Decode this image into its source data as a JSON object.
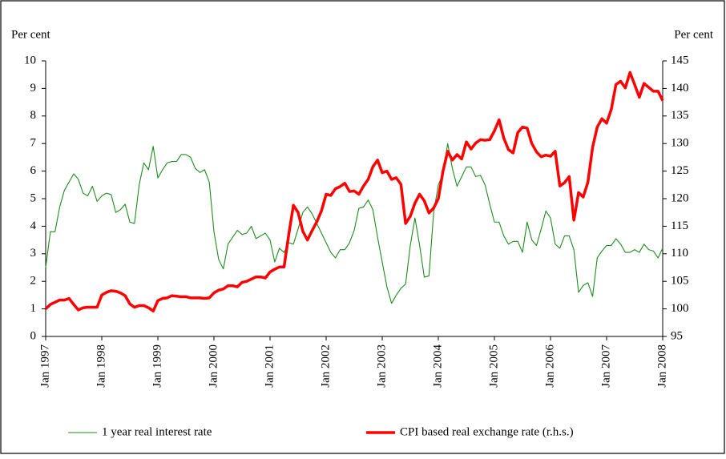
{
  "chart_data": {
    "type": "line",
    "y_label": "Per cent",
    "y2_label": "Per cent",
    "categories": [
      "Jan 1997",
      null,
      null,
      null,
      null,
      null,
      null,
      null,
      null,
      null,
      null,
      null,
      "Jan 1998",
      null,
      null,
      null,
      null,
      null,
      null,
      null,
      null,
      null,
      null,
      null,
      "Jan 1999",
      null,
      null,
      null,
      null,
      null,
      null,
      null,
      null,
      null,
      null,
      null,
      "Jan 2000",
      null,
      null,
      null,
      null,
      null,
      null,
      null,
      null,
      null,
      null,
      null,
      "Jan 2001",
      null,
      null,
      null,
      null,
      null,
      null,
      null,
      null,
      null,
      null,
      null,
      "Jan 2002",
      null,
      null,
      null,
      null,
      null,
      null,
      null,
      null,
      null,
      null,
      null,
      "Jan 2003",
      null,
      null,
      null,
      null,
      null,
      null,
      null,
      null,
      null,
      null,
      null,
      "Jan 2004",
      null,
      null,
      null,
      null,
      null,
      null,
      null,
      null,
      null,
      null,
      null,
      "Jan 2005",
      null,
      null,
      null,
      null,
      null,
      null,
      null,
      null,
      null,
      null,
      null,
      "Jan 2006",
      null,
      null,
      null,
      null,
      null,
      null,
      null,
      null,
      null,
      null,
      null,
      "Jan 2007",
      null,
      null,
      null,
      null,
      null,
      null,
      null,
      null,
      null,
      null,
      null,
      "Jan 2008"
    ],
    "series": [
      {
        "name": "1 year real interest rate",
        "color": "#1e8c1e",
        "axis": "y",
        "values": [
          2.5,
          3.8,
          3.8,
          4.7,
          5.3,
          5.6,
          5.9,
          5.7,
          5.2,
          5.1,
          5.45,
          4.9,
          5.1,
          5.2,
          5.15,
          4.5,
          4.6,
          4.8,
          4.15,
          4.1,
          5.5,
          6.3,
          6.05,
          6.9,
          5.75,
          6.05,
          6.3,
          6.35,
          6.35,
          6.6,
          6.6,
          6.5,
          6.1,
          5.95,
          6.05,
          5.6,
          3.8,
          2.8,
          2.45,
          3.35,
          3.6,
          3.85,
          3.7,
          3.75,
          4.0,
          3.55,
          3.65,
          3.75,
          3.5,
          2.7,
          3.2,
          3.05,
          3.4,
          3.35,
          3.9,
          4.5,
          4.7,
          4.45,
          4.1,
          3.75,
          3.4,
          3.05,
          2.85,
          3.15,
          3.15,
          3.4,
          3.85,
          4.65,
          4.7,
          4.95,
          4.6,
          3.6,
          2.7,
          1.8,
          1.2,
          1.5,
          1.75,
          1.9,
          3.3,
          4.3,
          3.3,
          2.15,
          2.2,
          4.5,
          5.5,
          5.9,
          7.0,
          6.1,
          5.45,
          5.8,
          6.15,
          6.15,
          5.8,
          5.85,
          5.5,
          4.8,
          4.15,
          4.15,
          3.65,
          3.35,
          3.45,
          3.45,
          3.05,
          4.15,
          3.5,
          3.3,
          3.9,
          4.55,
          4.3,
          3.35,
          3.2,
          3.65,
          3.65,
          3.15,
          1.6,
          1.85,
          1.95,
          1.45,
          2.85,
          3.1,
          3.3,
          3.3,
          3.55,
          3.35,
          3.05,
          3.05,
          3.15,
          3.05,
          3.35,
          3.15,
          3.1,
          2.85,
          3.2
        ]
      },
      {
        "name": "CPI based real exchange rate (r.h.s.)",
        "color": "#ff0000",
        "axis": "y2",
        "values": [
          100,
          100.8,
          101.2,
          101.6,
          101.6,
          101.9,
          100.8,
          99.8,
          100.2,
          100.3,
          100.3,
          100.3,
          102.5,
          103.0,
          103.3,
          103.2,
          102.9,
          102.4,
          100.9,
          100.3,
          100.6,
          100.6,
          100.2,
          99.6,
          101.5,
          101.9,
          102.0,
          102.4,
          102.3,
          102.2,
          102.2,
          102.0,
          102.0,
          102.0,
          101.9,
          102.0,
          102.9,
          103.4,
          103.6,
          104.2,
          104.2,
          104.0,
          104.8,
          105.0,
          105.4,
          105.8,
          105.8,
          105.6,
          106.7,
          107.2,
          107.6,
          107.6,
          113.5,
          118.8,
          117.5,
          114.1,
          112.5,
          114.2,
          115.8,
          117.8,
          120.8,
          120.6,
          121.8,
          122.2,
          122.8,
          121.3,
          121.4,
          120.8,
          122.3,
          123.5,
          125.8,
          127.0,
          124.7,
          125.0,
          123.5,
          123.8,
          122.6,
          115.5,
          116.8,
          119.2,
          120.8,
          119.6,
          117.4,
          118.3,
          120.0,
          125.0,
          128.6,
          127.0,
          128.0,
          127.2,
          130.3,
          129.0,
          130.1,
          130.7,
          130.6,
          130.7,
          132.3,
          134.3,
          131.0,
          128.9,
          128.3,
          132.0,
          133.0,
          132.8,
          130.0,
          128.5,
          127.6,
          127.9,
          127.7,
          128.6,
          122.3,
          122.9,
          124.0,
          116.1,
          121.1,
          120.3,
          123.0,
          129.3,
          133.0,
          134.5,
          133.7,
          136.2,
          140.7,
          141.3,
          140.1,
          142.9,
          140.7,
          138.4,
          140.9,
          140.2,
          139.5,
          139.5,
          137.8
        ]
      }
    ],
    "ylim": [
      0,
      10
    ],
    "yticks": [
      0,
      1,
      2,
      3,
      4,
      5,
      6,
      7,
      8,
      9,
      10
    ],
    "y2lim": [
      95,
      145
    ],
    "y2ticks": [
      95,
      100,
      105,
      110,
      115,
      120,
      125,
      130,
      135,
      140,
      145
    ],
    "grid": false
  }
}
